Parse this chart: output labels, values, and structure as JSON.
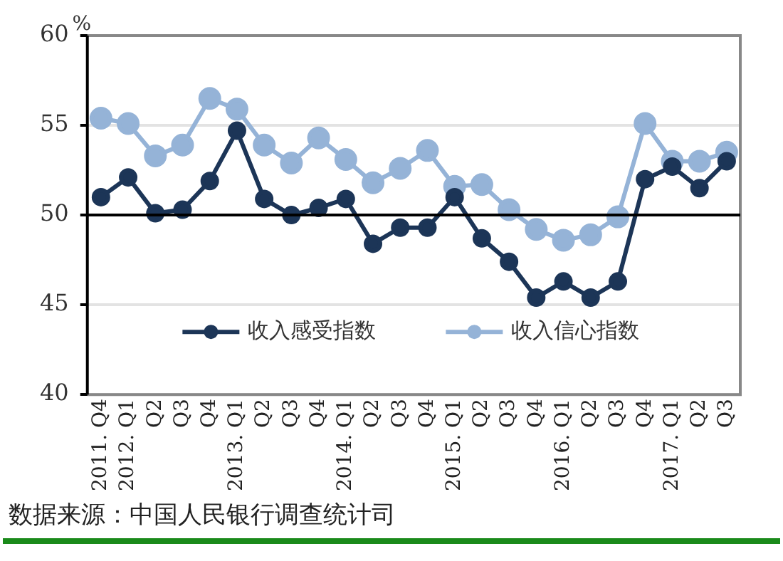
{
  "chart_data": {
    "type": "line",
    "ylabel": "%",
    "categories": [
      "2011. Q4",
      "2012. Q1",
      "Q2",
      "Q3",
      "Q4",
      "2013. Q1",
      "Q2",
      "Q3",
      "Q4",
      "2014. Q1",
      "Q2",
      "Q3",
      "Q4",
      "2015. Q1",
      "Q2",
      "Q3",
      "Q4",
      "2016. Q1",
      "Q2",
      "Q3",
      "Q4",
      "2017. Q1",
      "Q2",
      "Q3"
    ],
    "series": [
      {
        "name": "收入感受指数",
        "color": "#1c3557",
        "values": [
          51.0,
          52.1,
          50.1,
          50.3,
          51.9,
          54.7,
          50.9,
          50.0,
          50.4,
          50.9,
          48.4,
          49.3,
          49.3,
          51.0,
          48.7,
          47.4,
          45.4,
          46.3,
          45.4,
          46.3,
          52.0,
          52.7,
          51.5,
          53.0
        ]
      },
      {
        "name": "收入信心指数",
        "color": "#95b3d7",
        "values": [
          55.4,
          55.1,
          53.3,
          53.9,
          56.5,
          55.9,
          53.9,
          52.9,
          54.3,
          53.1,
          51.8,
          52.6,
          53.6,
          51.6,
          51.7,
          50.3,
          49.2,
          48.6,
          48.9,
          49.9,
          55.1,
          53.0,
          53.0,
          53.5
        ]
      }
    ],
    "ylim": [
      40,
      60
    ],
    "yticks": [
      40,
      45,
      50,
      55,
      60
    ],
    "ref_lines": [
      {
        "axis": "y",
        "value": 50,
        "color": "#000000"
      }
    ],
    "grid": "y",
    "legend": "bottom",
    "marker": "circle",
    "line_style": "solid",
    "annotations": [
      "数据来源：中国人民银行调查统计司"
    ]
  }
}
